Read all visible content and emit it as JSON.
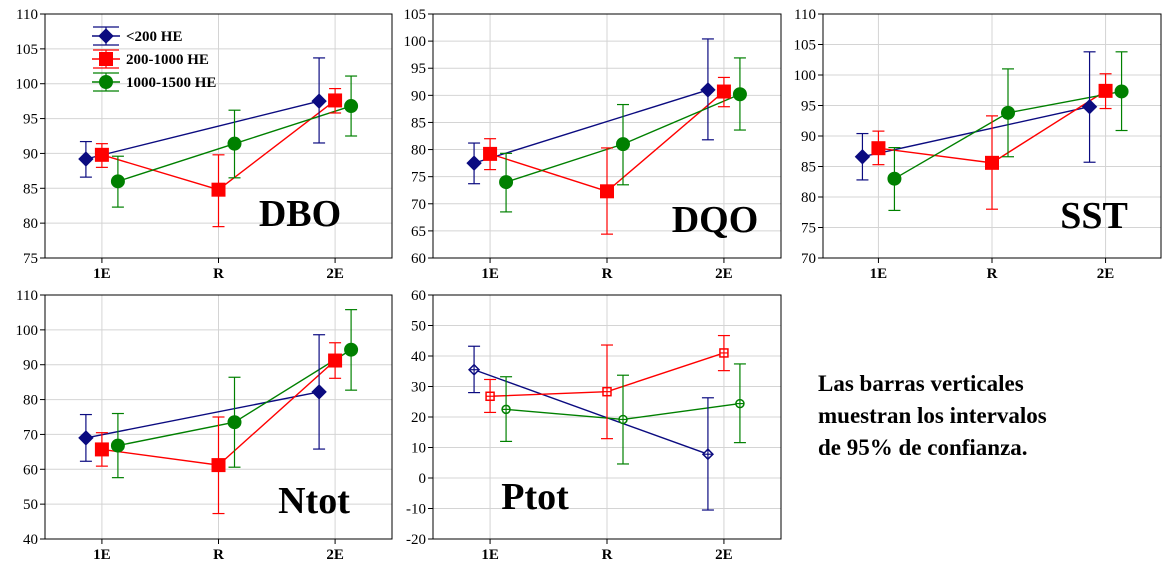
{
  "colors": {
    "lt200": "#0b0b80",
    "mid": "#ff0000",
    "high": "#008000",
    "grid": "#d4d4d4"
  },
  "legend": {
    "entries": [
      "<200 HE",
      "200-1000 HE",
      "1000-1500 HE"
    ],
    "markers": [
      "diamond",
      "square",
      "circle"
    ]
  },
  "note": {
    "line1": "Las barras verticales",
    "line2": "muestran los intervalos",
    "line3": "de 95% de confianza."
  },
  "chart_data": [
    {
      "type": "line",
      "title": "DBO",
      "categories": [
        "1E",
        "R",
        "2E"
      ],
      "ylim": [
        75,
        110
      ],
      "yticks": [
        75,
        80,
        85,
        90,
        95,
        100,
        105,
        110
      ],
      "grid": true,
      "legend_position": "top-left",
      "series": [
        {
          "name": "<200 HE",
          "values": [
            89.2,
            null,
            97.5
          ],
          "lower": [
            86.6,
            null,
            91.5
          ],
          "upper": [
            91.7,
            null,
            103.7
          ]
        },
        {
          "name": "200-1000 HE",
          "values": [
            89.8,
            84.8,
            97.6
          ],
          "lower": [
            88.0,
            79.5,
            95.8
          ],
          "upper": [
            91.4,
            89.8,
            99.3
          ]
        },
        {
          "name": "1000-1500 HE",
          "values": [
            86.0,
            91.4,
            96.8
          ],
          "lower": [
            82.3,
            86.5,
            92.5
          ],
          "upper": [
            89.6,
            96.2,
            101.1
          ]
        }
      ]
    },
    {
      "type": "line",
      "title": "DQO",
      "categories": [
        "1E",
        "R",
        "2E"
      ],
      "ylim": [
        60,
        105
      ],
      "yticks": [
        60,
        65,
        70,
        75,
        80,
        85,
        90,
        95,
        100,
        105
      ],
      "grid": true,
      "series": [
        {
          "name": "<200 HE",
          "values": [
            77.5,
            null,
            91.0
          ],
          "lower": [
            73.7,
            null,
            81.8
          ],
          "upper": [
            81.2,
            null,
            100.4
          ]
        },
        {
          "name": "200-1000 HE",
          "values": [
            79.2,
            72.3,
            90.7
          ],
          "lower": [
            76.3,
            64.4,
            87.9
          ],
          "upper": [
            82.0,
            80.3,
            93.3
          ]
        },
        {
          "name": "1000-1500 HE",
          "values": [
            74.0,
            81.0,
            90.2
          ],
          "lower": [
            68.5,
            73.5,
            83.6
          ],
          "upper": [
            79.3,
            88.3,
            96.9
          ]
        }
      ]
    },
    {
      "type": "line",
      "title": "SST",
      "categories": [
        "1E",
        "R",
        "2E"
      ],
      "ylim": [
        70,
        110
      ],
      "yticks": [
        70,
        75,
        80,
        85,
        90,
        95,
        100,
        105,
        110
      ],
      "grid": true,
      "series": [
        {
          "name": "<200 HE",
          "values": [
            86.6,
            null,
            94.8
          ],
          "lower": [
            82.8,
            null,
            85.7
          ],
          "upper": [
            90.4,
            null,
            103.8
          ]
        },
        {
          "name": "200-1000 HE",
          "values": [
            88.0,
            85.6,
            97.4
          ],
          "lower": [
            85.3,
            78.0,
            94.5
          ],
          "upper": [
            90.8,
            93.3,
            100.2
          ]
        },
        {
          "name": "1000-1500 HE",
          "values": [
            83.0,
            93.8,
            97.3
          ],
          "lower": [
            77.8,
            86.6,
            90.9
          ],
          "upper": [
            88.1,
            101.0,
            103.8
          ]
        }
      ]
    },
    {
      "type": "line",
      "title": "Ntot",
      "categories": [
        "1E",
        "R",
        "2E"
      ],
      "ylim": [
        40,
        110
      ],
      "yticks": [
        40,
        50,
        60,
        70,
        80,
        90,
        100,
        110
      ],
      "grid": true,
      "series": [
        {
          "name": "<200 HE",
          "values": [
            69.0,
            null,
            82.2
          ],
          "lower": [
            62.3,
            null,
            65.8
          ],
          "upper": [
            75.7,
            null,
            98.6
          ]
        },
        {
          "name": "200-1000 HE",
          "values": [
            65.7,
            61.2,
            91.2
          ],
          "lower": [
            60.9,
            47.3,
            86.1
          ],
          "upper": [
            70.5,
            75.0,
            96.3
          ]
        },
        {
          "name": "1000-1500 HE",
          "values": [
            66.8,
            73.5,
            94.3
          ],
          "lower": [
            57.6,
            60.6,
            82.7
          ],
          "upper": [
            76.0,
            86.4,
            105.8
          ]
        }
      ]
    },
    {
      "type": "line",
      "title": "Ptot",
      "categories": [
        "1E",
        "R",
        "2E"
      ],
      "ylim": [
        -20,
        60
      ],
      "yticks": [
        -20,
        -10,
        0,
        10,
        20,
        30,
        40,
        50,
        60
      ],
      "grid": true,
      "series": [
        {
          "name": "<200 HE",
          "values": [
            35.5,
            null,
            7.8
          ],
          "lower": [
            28.0,
            null,
            -10.5
          ],
          "upper": [
            43.2,
            null,
            26.3
          ]
        },
        {
          "name": "200-1000 HE",
          "values": [
            26.8,
            28.3,
            41.0
          ],
          "lower": [
            21.5,
            12.9,
            35.2
          ],
          "upper": [
            32.3,
            43.6,
            46.7
          ]
        },
        {
          "name": "1000-1500 HE",
          "values": [
            22.5,
            19.2,
            24.4
          ],
          "lower": [
            12.0,
            4.6,
            11.6
          ],
          "upper": [
            33.2,
            33.7,
            37.4
          ]
        }
      ]
    }
  ]
}
